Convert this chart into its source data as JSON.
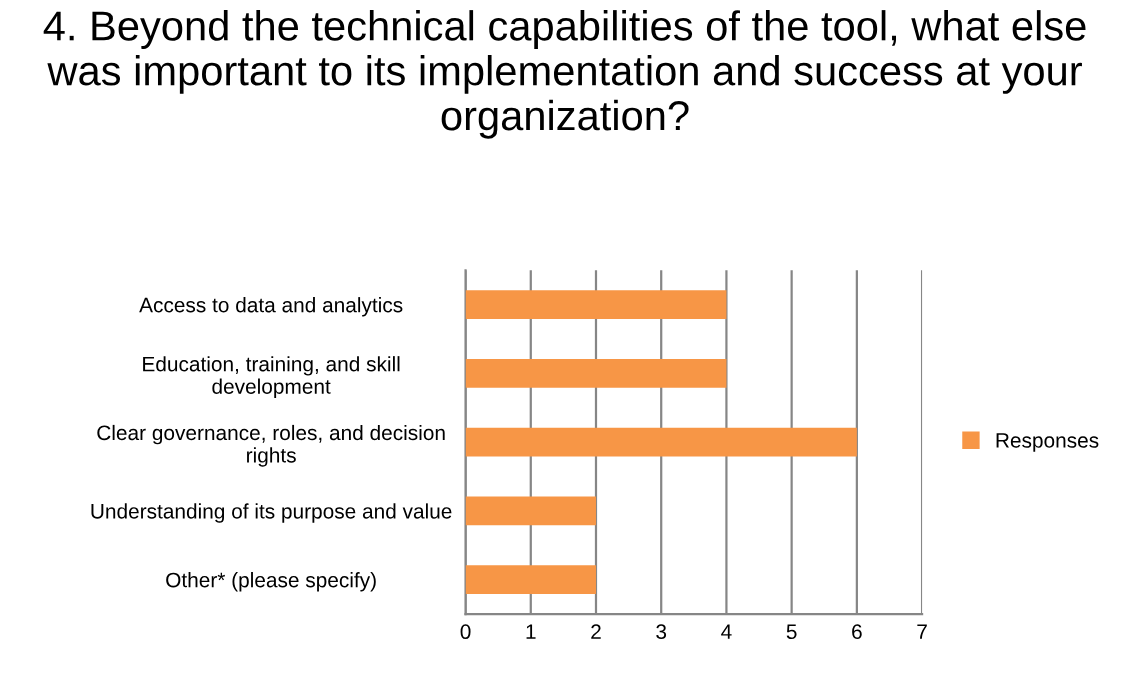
{
  "chart_data": {
    "type": "bar",
    "orientation": "horizontal",
    "title": "4. Beyond the technical capabilities of the tool, what else was important to its implementation and success at your organization?",
    "categories": [
      "Access to data and analytics",
      "Education, training, and skill\ndevelopment",
      "Clear governance, roles, and decision\nrights",
      "Understanding of its purpose and value",
      "Other* (please specify)"
    ],
    "series": [
      {
        "name": "Responses",
        "color": "#f79646",
        "values": [
          4,
          4,
          6,
          2,
          2
        ]
      }
    ],
    "xlim": [
      0,
      7
    ],
    "xticks": [
      0,
      1,
      2,
      3,
      4,
      5,
      6,
      7
    ],
    "grid": "x",
    "legend": "right"
  }
}
